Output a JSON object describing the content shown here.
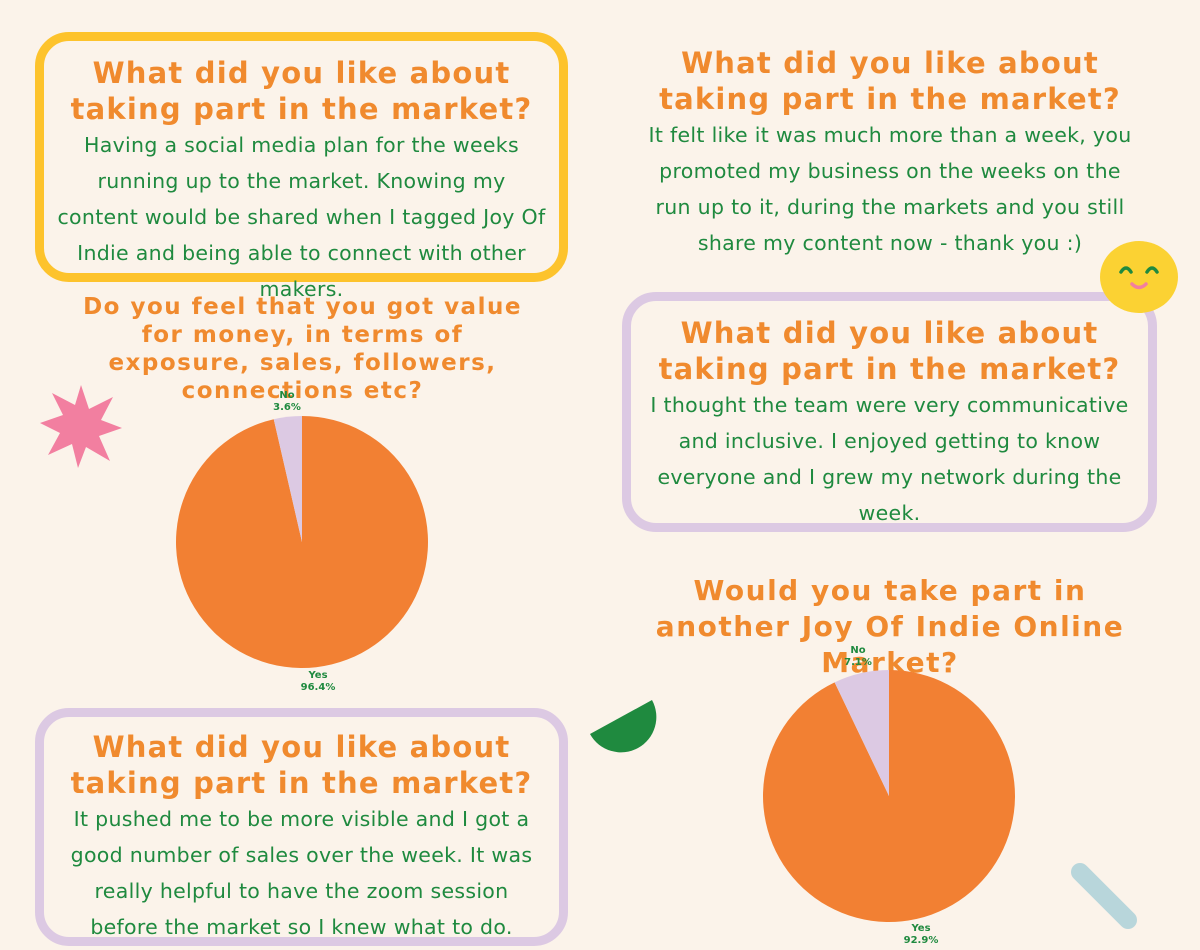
{
  "cards": [
    {
      "question": "What did you like about taking part in the market?",
      "answer": "Having a social media plan for the weeks running up to the market. Knowing my content would be shared when I tagged Joy Of Indie and being able to connect with other makers."
    },
    {
      "question": "What did you like about taking part in the market?",
      "answer": "It felt like it was much more than a week, you promoted my business on the weeks on the run up to it, during the markets and you still share my content now - thank you :)"
    },
    {
      "question": "What did you like about taking part in the market?",
      "answer": "I thought the team were very communicative and inclusive. I enjoyed getting to know everyone and I grew my network during the week."
    },
    {
      "question": "What did you like about taking part in the market?",
      "answer": "It pushed me to be more visible and I got a good number of sales over the week. It was really helpful to have the zoom session before the market so I knew what to do."
    }
  ],
  "colors": {
    "background": "#fbf3ea",
    "heading": "#f08a2e",
    "body_text": "#1f8a3f",
    "yellow_border": "#fdc32c",
    "lavender_border": "#dcc9e3",
    "pie_yes": "#f28033",
    "pie_no": "#dcc9e3"
  },
  "decorations": [
    "pink-star-icon",
    "smiley-face-icon",
    "green-half-circle-icon",
    "blue-capsule-icon"
  ],
  "chart_data": [
    {
      "type": "pie",
      "title": "Do you feel that you got value for money, in terms of exposure, sales, followers, connections etc?",
      "labels": [
        "Yes",
        "No"
      ],
      "values": [
        96.4,
        3.6
      ],
      "value_labels": [
        "96.4%",
        "3.6%"
      ]
    },
    {
      "type": "pie",
      "title": "Would you take part in another Joy Of Indie Online Market?",
      "labels": [
        "Yes",
        "No"
      ],
      "values": [
        92.9,
        7.1
      ],
      "value_labels": [
        "92.9%",
        "7.1%"
      ]
    }
  ]
}
